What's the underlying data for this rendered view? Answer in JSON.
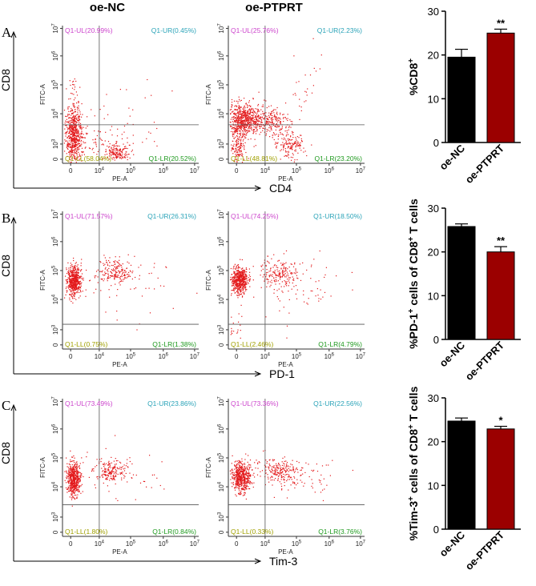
{
  "figure": {
    "column_titles": [
      "oe-NC",
      "oe-PTPRT"
    ],
    "panels": [
      {
        "letter": "A",
        "y_marker": "CD8",
        "x_marker": "CD4",
        "x_axis_label": "PE-A",
        "y_axis_label": "FITC-A",
        "plots": [
          {
            "group": "oe-NC",
            "quadrants": {
              "ul": "Q1-UL(20.99%)",
              "ur": "Q1-UR(0.45%)",
              "ll": "Q1-LL(58.04%)",
              "lr": "Q1-LR(20.52%)"
            }
          },
          {
            "group": "oe-PTPRT",
            "quadrants": {
              "ul": "Q1-UL(25.76%)",
              "ur": "Q1-UR(2.23%)",
              "ll": "Q1-LL(48.81%)",
              "lr": "Q1-LR(23.20%)"
            }
          }
        ]
      },
      {
        "letter": "B",
        "y_marker": "CD8",
        "x_marker": "PD-1",
        "x_axis_label": "PE-A",
        "y_axis_label": "FITC-A",
        "plots": [
          {
            "group": "oe-NC",
            "quadrants": {
              "ul": "Q1-UL(71.57%)",
              "ur": "Q1-UR(26.31%)",
              "ll": "Q1-LL(0.75%)",
              "lr": "Q1-LR(1.38%)"
            }
          },
          {
            "group": "oe-PTPRT",
            "quadrants": {
              "ul": "Q1-UL(74.25%)",
              "ur": "Q1-UR(18.50%)",
              "ll": "Q1-LL(2.46%)",
              "lr": "Q1-LR(4.79%)"
            }
          }
        ]
      },
      {
        "letter": "C",
        "y_marker": "CD8",
        "x_marker": "Tim-3",
        "x_axis_label": "PE-A",
        "y_axis_label": "FITC-A",
        "plots": [
          {
            "group": "oe-NC",
            "quadrants": {
              "ul": "Q1-UL(73.49%)",
              "ur": "Q1-UR(23.86%)",
              "ll": "Q1-LL(1.80%)",
              "lr": "Q1-LR(0.84%)"
            }
          },
          {
            "group": "oe-PTPRT",
            "quadrants": {
              "ul": "Q1-UL(73.36%)",
              "ur": "Q1-UR(22.56%)",
              "ll": "Q1-LL(0.33%)",
              "lr": "Q1-LR(3.76%)"
            }
          }
        ]
      }
    ],
    "flow_ticks": {
      "x": [
        "0",
        "10^4",
        "10^5",
        "10^6",
        "10^7"
      ],
      "y": [
        "0",
        "10^3",
        "10^4",
        "10^5",
        "10^6",
        "10^7"
      ]
    }
  },
  "colors": {
    "oe_nc_bar": "#000000",
    "oe_ptprt_bar": "#9b0000",
    "dots": "#e31a1c",
    "quad_ul": "#cc44cc",
    "quad_ur": "#2aa3b8",
    "quad_ll": "#a0a000",
    "quad_lr": "#1f9a1f"
  },
  "chart_data": [
    {
      "type": "bar",
      "ylabel_parts": [
        "%CD8",
        "+"
      ],
      "categories": [
        "oe-NC",
        "oe-PTPRT"
      ],
      "values": [
        19.5,
        25.0
      ],
      "errors": [
        1.8,
        0.9
      ],
      "ylim": [
        0,
        30
      ],
      "yticks": [
        "0",
        "10",
        "20",
        "30"
      ],
      "significance": "**"
    },
    {
      "type": "bar",
      "ylabel_parts": [
        "%PD-1",
        "+",
        " cells of CD8",
        "+",
        " T cells"
      ],
      "categories": [
        "oe-NC",
        "oe-PTPRT"
      ],
      "values": [
        25.8,
        20.0
      ],
      "errors": [
        0.6,
        1.2
      ],
      "ylim": [
        0,
        30
      ],
      "yticks": [
        "0",
        "10",
        "20",
        "30"
      ],
      "significance": "**"
    },
    {
      "type": "bar",
      "ylabel_parts": [
        "%Tim-3",
        "+",
        " cells of CD8",
        "+",
        " T cells"
      ],
      "categories": [
        "oe-NC",
        "oe-PTPRT"
      ],
      "values": [
        24.7,
        22.9
      ],
      "errors": [
        0.7,
        0.6
      ],
      "ylim": [
        0,
        30
      ],
      "yticks": [
        "0",
        "10",
        "20",
        "30"
      ],
      "significance": "*"
    }
  ]
}
